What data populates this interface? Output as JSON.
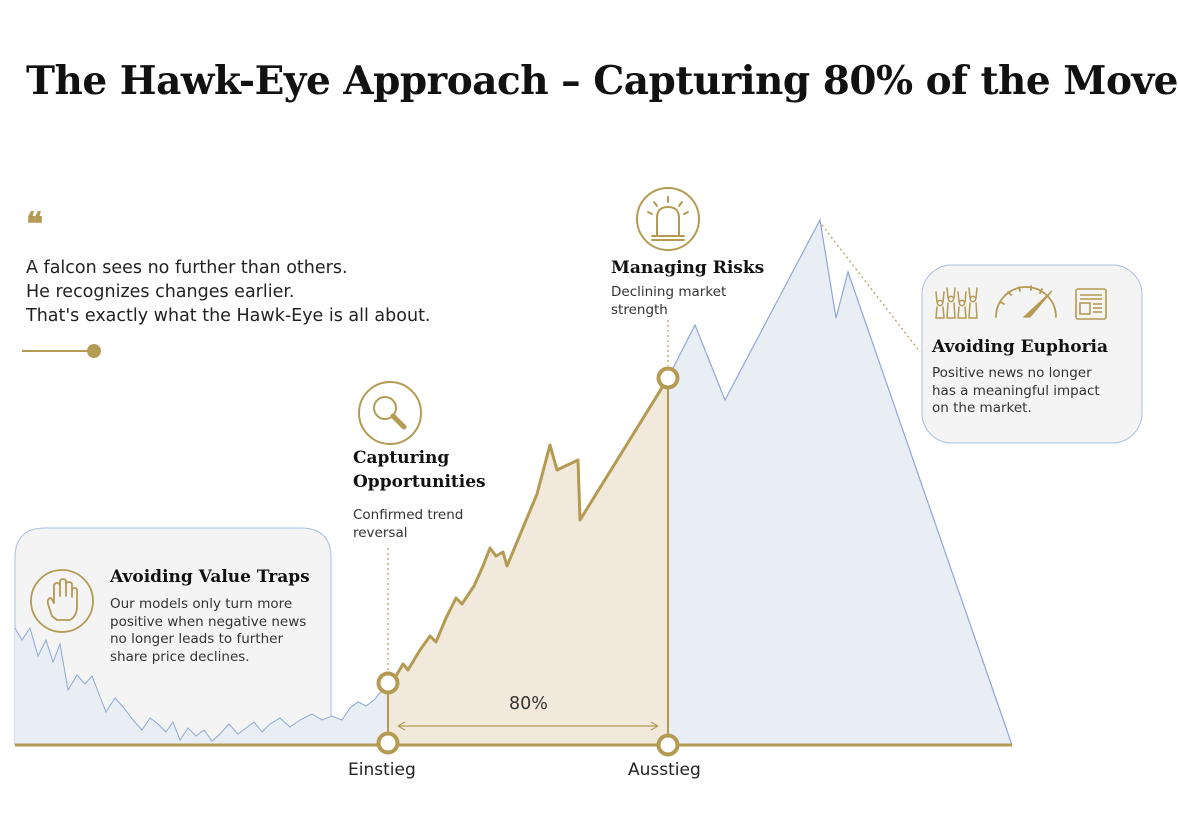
{
  "title": "The Hawk-Eye Approach – Capturing 80% of the Move",
  "quote": {
    "mark": "❝",
    "lines": [
      "A falcon sees no further than others.",
      "He recognizes changes earlier.",
      "That's exactly what the Hawk-Eye is all about."
    ]
  },
  "value_traps": {
    "title": "Avoiding Value Traps",
    "lines": [
      "Our models only turn more",
      "positive when negative news",
      "no longer leads to further",
      "share price declines."
    ],
    "icon": "hand-stop-icon"
  },
  "opportunities": {
    "title_lines": [
      "Capturing",
      "Opportunities"
    ],
    "lines": [
      "Confirmed trend",
      "reversal"
    ],
    "icon": "magnifier-icon"
  },
  "risks": {
    "title": "Managing Risks",
    "lines": [
      "Declining market",
      "strength"
    ],
    "icon": "siren-icon"
  },
  "euphoria": {
    "title": "Avoiding Euphoria",
    "lines": [
      "Positive news no longer",
      "has a meaningful impact",
      "on the market."
    ],
    "icons": [
      "cheering-crowd-icon",
      "speedometer-icon",
      "newspaper-icon"
    ]
  },
  "range": {
    "percent_label": "80%",
    "entry_label": "Einstieg",
    "exit_label": "Ausstieg"
  },
  "colors": {
    "gold": "#b59a53",
    "gold_fill": "#f1eadc",
    "blue_line": "#8ea8d4",
    "blue_fill": "#e9eef5",
    "panel_fill": "#f4f4f4"
  }
}
